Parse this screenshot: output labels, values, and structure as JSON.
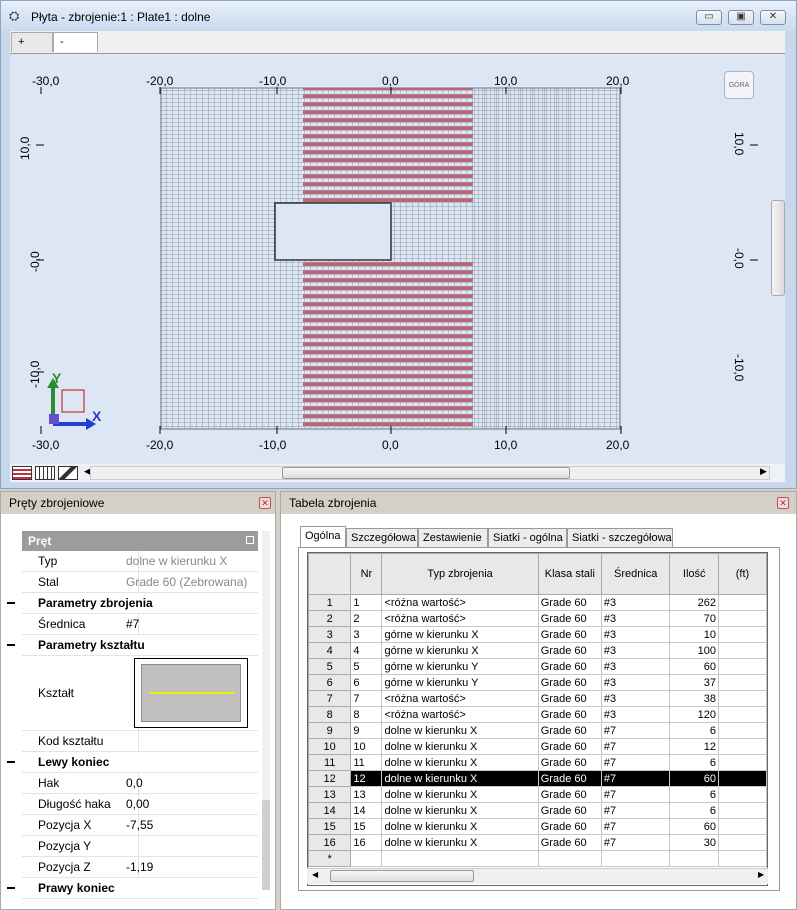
{
  "window": {
    "title": "Płyta - zbrojenie:1 : Plate1  : dolne",
    "tabs": [
      "+",
      "-"
    ],
    "view_cube_label": "GÓRA",
    "axis_y_label": "Y",
    "axis_x_label": "X",
    "buttons": {
      "minimize": "▭",
      "restore": "▣",
      "close": "✕"
    }
  },
  "ruler": {
    "top": [
      "-30,0",
      "-20,0",
      "-10,0",
      "0,0",
      "10,0",
      "20,0"
    ],
    "bottom": [
      "-30,0",
      "-20,0",
      "-10,0",
      "0,0",
      "10,0",
      "20,0"
    ],
    "left": [
      "10,0",
      "-0,0",
      "-10,0"
    ],
    "right": [
      "10,0",
      "-0,0",
      "-10,0"
    ]
  },
  "left_panel": {
    "title": "Pręty zbrojeniowe",
    "group_header": "Pręt",
    "rows": [
      {
        "type": "row",
        "key": "Typ",
        "value": "dolne w kierunku X",
        "dim": true
      },
      {
        "type": "row",
        "key": "Stal",
        "value": "Grade 60 (Zebrowana)",
        "dim": true
      },
      {
        "type": "cat",
        "key": "Parametry zbrojenia"
      },
      {
        "type": "row",
        "key": "Średnica",
        "value": "#7",
        "dim": false
      },
      {
        "type": "cat",
        "key": "Parametry kształtu"
      },
      {
        "type": "shape",
        "key": "Kształt"
      },
      {
        "type": "row",
        "key": "Kod kształtu",
        "value": "",
        "dim": false
      },
      {
        "type": "cat",
        "key": "Lewy koniec"
      },
      {
        "type": "row",
        "key": "Hak",
        "value": "0,0",
        "dim": false
      },
      {
        "type": "row",
        "key": "Długość haka",
        "value": "0,00",
        "dim": false
      },
      {
        "type": "row",
        "key": "Pozycja X",
        "value": "-7,55",
        "dim": false
      },
      {
        "type": "row",
        "key": "Pozycja Y",
        "value": "",
        "dim": false
      },
      {
        "type": "row",
        "key": "Pozycja Z",
        "value": "-1,19",
        "dim": false
      },
      {
        "type": "cat",
        "key": "Prawy koniec"
      }
    ]
  },
  "right_panel": {
    "title": "Tabela zbrojenia",
    "tabs": [
      "Ogólna",
      "Szczegółowa",
      "Zestawienie",
      "Siatki - ogólna",
      "Siatki - szczegółowa"
    ],
    "columns": [
      "Nr",
      "Typ zbrojenia",
      "Klasa stali",
      "Średnica",
      "Ilość",
      "(ft)"
    ],
    "rows": [
      [
        "1",
        "1",
        "<różna wartość>",
        "Grade 60",
        "#3",
        "262"
      ],
      [
        "2",
        "2",
        "<różna wartość>",
        "Grade 60",
        "#3",
        "70"
      ],
      [
        "3",
        "3",
        "górne w kierunku X",
        "Grade 60",
        "#3",
        "10"
      ],
      [
        "4",
        "4",
        "górne w kierunku X",
        "Grade 60",
        "#3",
        "100"
      ],
      [
        "5",
        "5",
        "górne w kierunku Y",
        "Grade 60",
        "#3",
        "60"
      ],
      [
        "6",
        "6",
        "górne w kierunku Y",
        "Grade 60",
        "#3",
        "37"
      ],
      [
        "7",
        "7",
        "<różna wartość>",
        "Grade 60",
        "#3",
        "38"
      ],
      [
        "8",
        "8",
        "<różna wartość>",
        "Grade 60",
        "#3",
        "120"
      ],
      [
        "9",
        "9",
        "dolne w kierunku X",
        "Grade 60",
        "#7",
        "6"
      ],
      [
        "10",
        "10",
        "dolne w kierunku X",
        "Grade 60",
        "#7",
        "12"
      ],
      [
        "11",
        "11",
        "dolne w kierunku X",
        "Grade 60",
        "#7",
        "6"
      ],
      [
        "12",
        "12",
        "dolne w kierunku X",
        "Grade 60",
        "#7",
        "60"
      ],
      [
        "13",
        "13",
        "dolne w kierunku X",
        "Grade 60",
        "#7",
        "6"
      ],
      [
        "14",
        "14",
        "dolne w kierunku X",
        "Grade 60",
        "#7",
        "6"
      ],
      [
        "15",
        "15",
        "dolne w kierunku X",
        "Grade 60",
        "#7",
        "60"
      ],
      [
        "16",
        "16",
        "dolne w kierunku X",
        "Grade 60",
        "#7",
        "30"
      ]
    ],
    "new_row_marker": "*",
    "selected_row": 12
  },
  "colors": {
    "rebar_red": "#c06070",
    "mesh": "#8c96a4",
    "selection": "#000000",
    "axis_y": "#2e8b2e",
    "axis_x": "#1f3fd0"
  }
}
